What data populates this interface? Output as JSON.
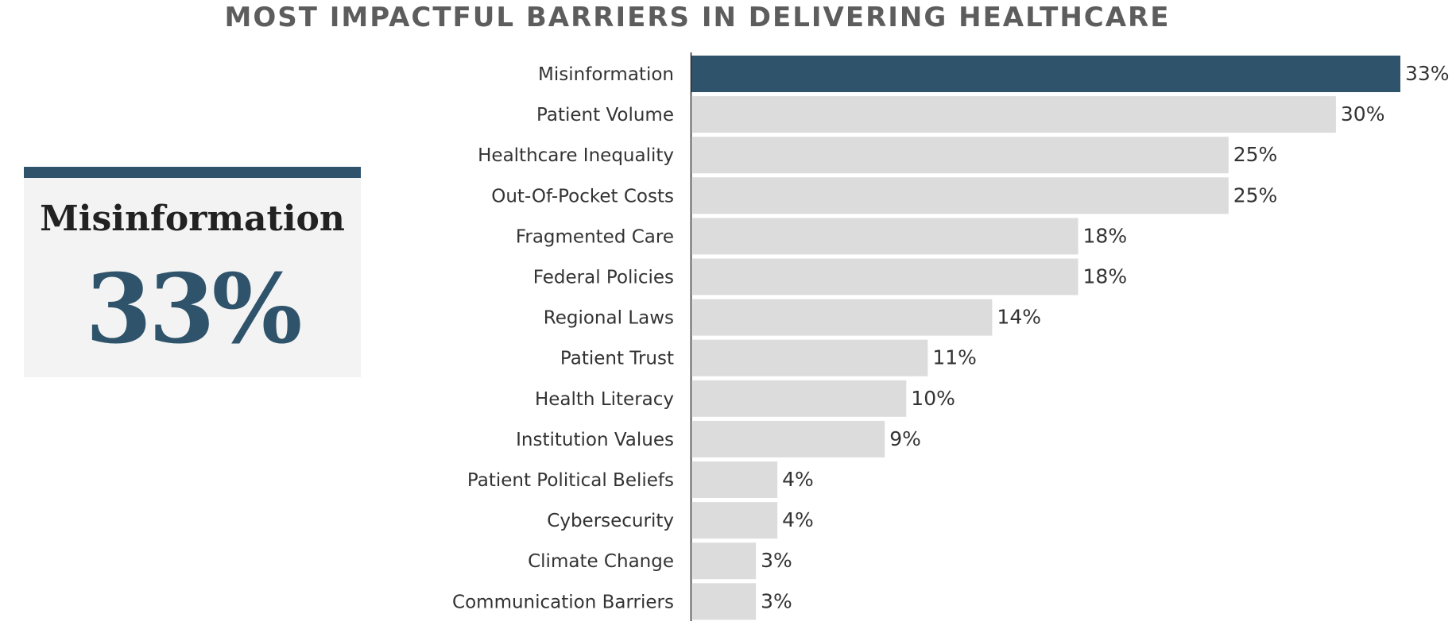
{
  "title": "MOST IMPACTFUL BARRIERS IN DELIVERING HEALTHCARE",
  "highlight": {
    "label": "Misinformation",
    "value": "33%"
  },
  "colors": {
    "highlight_bar": "#2e536b",
    "bar": "#dcdcdc",
    "text": "#333333",
    "axis": "#222222",
    "card_background": "#f3f3f3"
  },
  "chart_data": {
    "type": "bar",
    "orientation": "horizontal",
    "title": "MOST IMPACTFUL BARRIERS IN DELIVERING HEALTHCARE",
    "categories": [
      "Misinformation",
      "Patient Volume",
      "Healthcare Inequality",
      "Out-Of-Pocket Costs",
      "Fragmented Care",
      "Federal Policies",
      "Regional Laws",
      "Patient Trust",
      "Health Literacy",
      "Institution Values",
      "Patient Political Beliefs",
      "Cybersecurity",
      "Climate Change",
      "Communication Barriers"
    ],
    "values": [
      33,
      30,
      25,
      25,
      18,
      18,
      14,
      11,
      10,
      9,
      4,
      4,
      3,
      3
    ],
    "value_labels": [
      "33%",
      "30%",
      "25%",
      "25%",
      "18%",
      "18%",
      "14%",
      "11%",
      "10%",
      "9%",
      "4%",
      "4%",
      "3%",
      "3%"
    ],
    "unit": "%",
    "highlighted_index": 0,
    "xlim": [
      0,
      33
    ],
    "grid": false,
    "xlabel": "",
    "ylabel": ""
  }
}
